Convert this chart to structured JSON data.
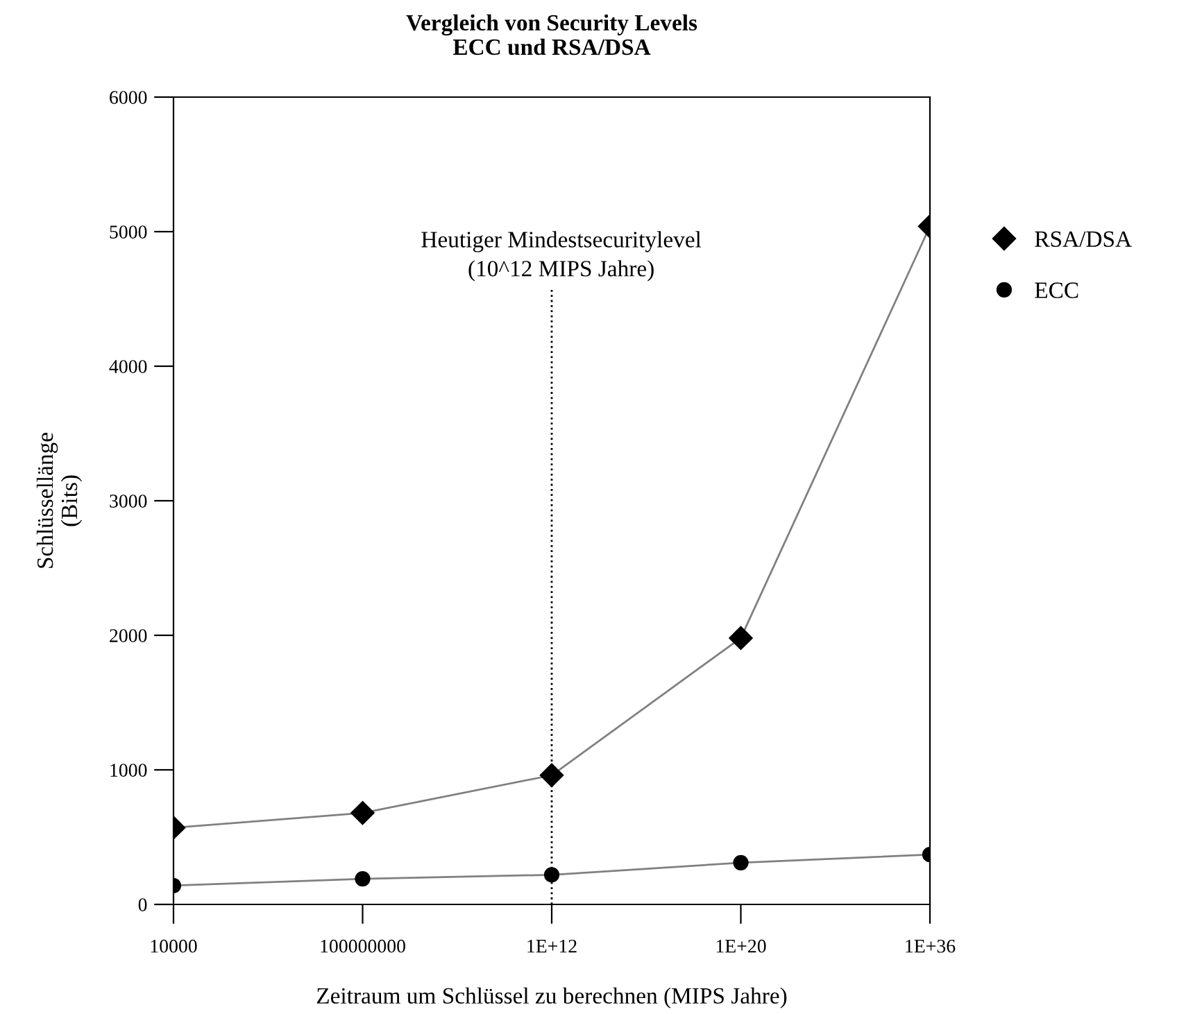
{
  "chart_data": {
    "type": "line",
    "title": "Vergleich von Security Levels\nECC und RSA/DSA",
    "xlabel": "Zeitraum um Schlüssel zu berechnen (MIPS Jahre)",
    "ylabel": "Schlüssellänge\n(Bits)",
    "categories": [
      "10000",
      "100000000",
      "1E+12",
      "1E+20",
      "1E+36"
    ],
    "series": [
      {
        "name": "RSA/DSA",
        "color": "#000000",
        "marker": "diamond",
        "values": [
          570,
          680,
          960,
          1980,
          5040
        ]
      },
      {
        "name": "ECC",
        "color": "#000000",
        "marker": "circle",
        "values": [
          140,
          190,
          220,
          310,
          370
        ]
      }
    ],
    "ylim": [
      0,
      6000
    ],
    "yticks": [
      0,
      1000,
      2000,
      3000,
      4000,
      5000,
      6000
    ],
    "ref_lines": [
      {
        "axis": "x",
        "value": "1E+12",
        "label": "Heutiger Mindestsecuritylevel\n(10^12 MIPS Jahre)",
        "line_style": "dotted",
        "color": "#000000"
      }
    ],
    "grid": false,
    "legend": "right",
    "line_style": "solid"
  }
}
